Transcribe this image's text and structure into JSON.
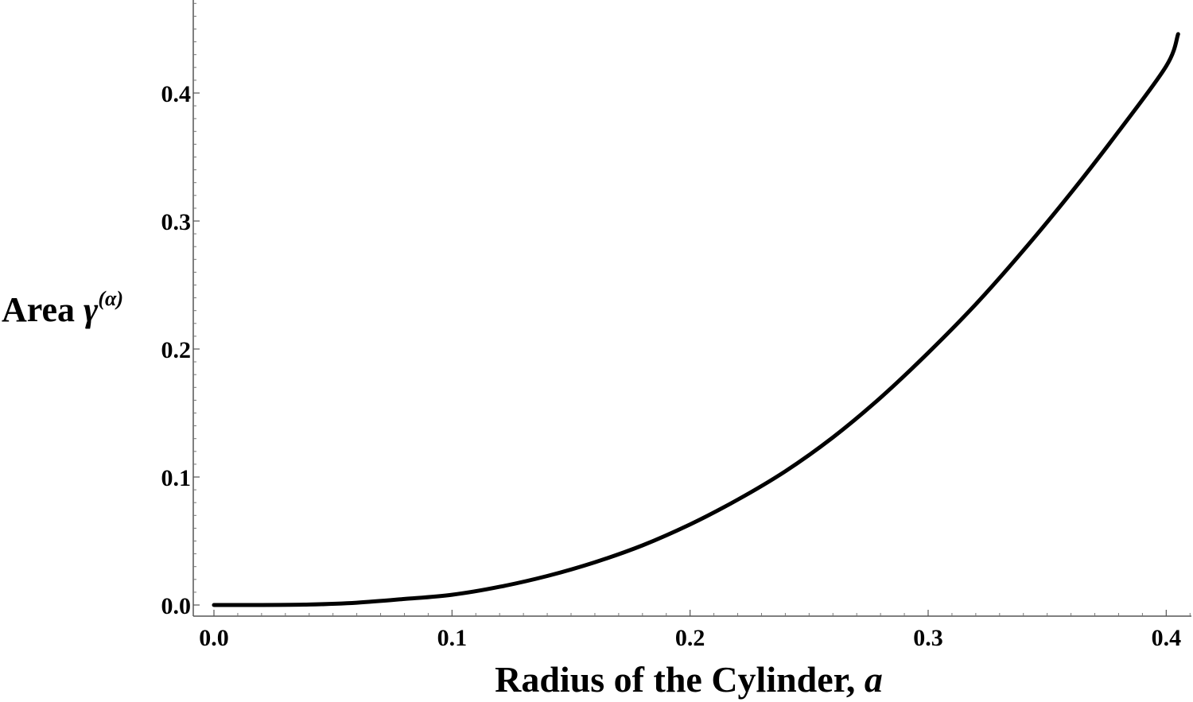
{
  "chart_data": {
    "type": "line",
    "xlabel": "Radius of the Cylinder, ",
    "xlabel_var": "a",
    "ylabel": "Area ",
    "ylabel_var": "γ",
    "ylabel_sup": "(α)",
    "xlim": [
      0.0,
      0.41
    ],
    "ylim": [
      0.0,
      0.45
    ],
    "x_ticks": [
      0.0,
      0.1,
      0.2,
      0.3,
      0.4
    ],
    "x_tick_labels": [
      "0.0",
      "0.1",
      "0.2",
      "0.3",
      "0.4"
    ],
    "y_ticks": [
      0.0,
      0.1,
      0.2,
      0.3,
      0.4
    ],
    "y_tick_labels": [
      "0.0",
      "0.1",
      "0.2",
      "0.3",
      "0.4"
    ],
    "grid": false,
    "line_color": "#000000",
    "series": [
      {
        "x": [
          0.0,
          0.02,
          0.04,
          0.06,
          0.08,
          0.1,
          0.12,
          0.14,
          0.16,
          0.18,
          0.2,
          0.22,
          0.24,
          0.26,
          0.28,
          0.3,
          0.32,
          0.34,
          0.36,
          0.38,
          0.4,
          0.405
        ],
        "y": [
          0.0,
          2e-05,
          0.0004,
          0.0018,
          0.0047,
          0.008,
          0.0142,
          0.0227,
          0.0334,
          0.0466,
          0.063,
          0.0823,
          0.1045,
          0.131,
          0.162,
          0.197,
          0.235,
          0.277,
          0.322,
          0.37,
          0.421,
          0.446
        ]
      }
    ]
  }
}
